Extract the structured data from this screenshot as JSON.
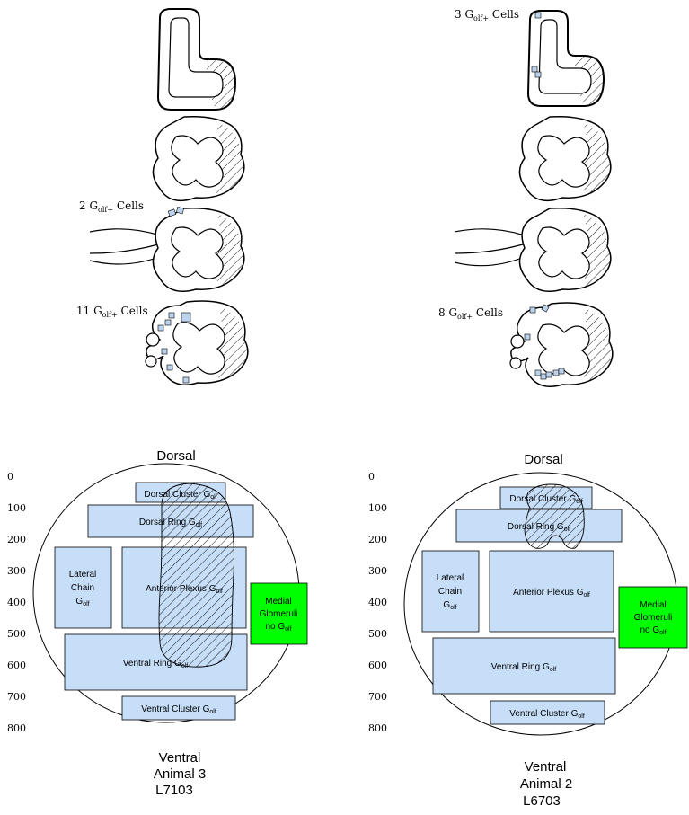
{
  "sections": [
    {
      "label_prefix": "",
      "count": "",
      "sub": "",
      "suffix": ""
    },
    {
      "label_prefix": "",
      "count": "",
      "sub": "",
      "suffix": ""
    },
    {
      "label_prefix": "2 G",
      "sub": "olf+",
      "suffix": " Cells"
    },
    {
      "label_prefix": "11 G",
      "sub": "olf+",
      "suffix": " Cells"
    },
    {
      "label_prefix": "3 G",
      "sub": "olf+",
      "suffix": " Cells"
    },
    {
      "label_prefix": "",
      "sub": "",
      "suffix": ""
    },
    {
      "label_prefix": "",
      "sub": "",
      "suffix": ""
    },
    {
      "label_prefix": "8  G",
      "sub": "olf+",
      "suffix": " Cells"
    }
  ],
  "axis_ticks": [
    "0",
    "100",
    "200",
    "300",
    "400",
    "500",
    "600",
    "700",
    "800"
  ],
  "maps": [
    {
      "top_label": "Dorsal",
      "bottom_label": "Ventral",
      "animal": "Animal 3",
      "id": "L7103",
      "regions": {
        "dorsal_cluster": "Dorsal Cluster G",
        "dorsal_ring": "Dorsal Ring G",
        "lateral_chain_1": "Lateral",
        "lateral_chain_2": "Chain",
        "lateral_chain_3": "G",
        "anterior_plexus": "Anterior Plexus G",
        "ventral_ring": "Ventral Ring G",
        "ventral_cluster": "Ventral Cluster G",
        "medial_1": "Medial",
        "medial_2": "Glomeruli",
        "medial_3": "no G"
      },
      "sub": "olf"
    },
    {
      "top_label": "Dorsal",
      "bottom_label": "Ventral",
      "animal": "Animal 2",
      "id": "L6703",
      "regions": {
        "dorsal_cluster": "Dorsal Cluster G",
        "dorsal_ring": "Dorsal Ring G",
        "lateral_chain_1": "Lateral",
        "lateral_chain_2": "Chain",
        "lateral_chain_3": "G",
        "anterior_plexus": "Anterior Plexus G",
        "ventral_ring": "Ventral Ring G",
        "ventral_cluster": "Ventral Cluster G",
        "medial_1": "Medial",
        "medial_2": "Glomeruli",
        "medial_3": "no G"
      },
      "sub": "olf"
    }
  ],
  "colors": {
    "region_fill": "#c6def8",
    "region_stroke": "#000000",
    "medial_fill": "#00ff00",
    "cell_fill": "#bcd3ee"
  }
}
